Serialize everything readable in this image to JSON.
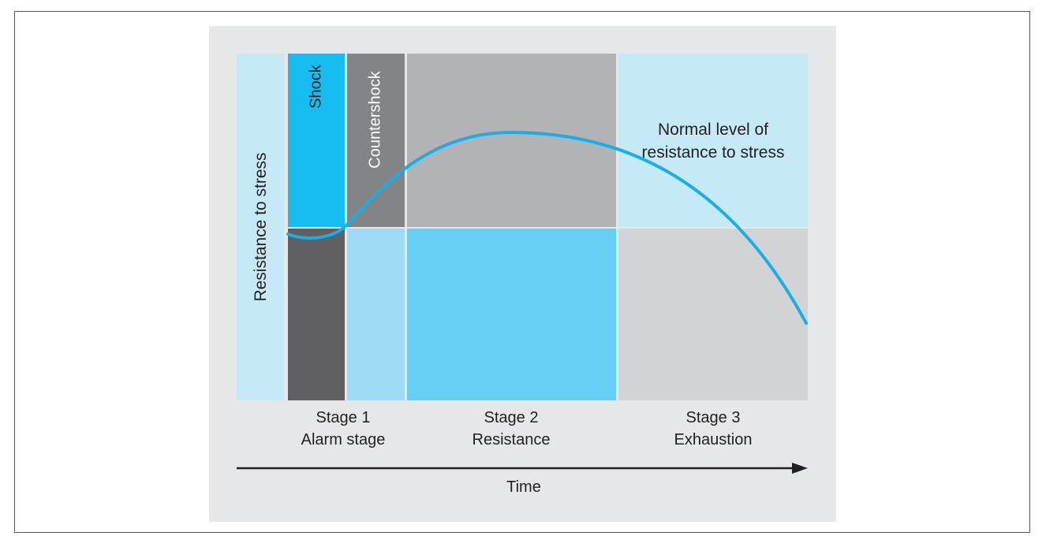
{
  "diagram": {
    "y_axis_label": "Resistance to stress",
    "x_axis_label": "Time",
    "phase_labels": {
      "shock": "Shock",
      "countershock": "Countershock"
    },
    "normal_level_label": [
      "Normal level of",
      "resistance to stress"
    ],
    "stages": [
      {
        "number": "Stage 1",
        "name": "Alarm stage"
      },
      {
        "number": "Stage 2",
        "name": "Resistance"
      },
      {
        "number": "Stage 3",
        "name": "Exhaustion"
      }
    ]
  },
  "colors": {
    "panel_background": "#e6e7e8",
    "light_blue": "#c6e9f8",
    "cyan": "#17bdf0",
    "dark_gray": "#606062",
    "mid_gray": "#838486",
    "pale_blue": "#9fdbf6",
    "gray": "#b1b3b6",
    "sky_blue": "#67cff4",
    "light_gray": "#d2d3d5",
    "curve": "#1aaee8",
    "arrow": "#231f20"
  }
}
